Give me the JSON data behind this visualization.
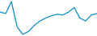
{
  "values": [
    48,
    46,
    62,
    28,
    18,
    22,
    30,
    36,
    40,
    43,
    45,
    44,
    48,
    54,
    40,
    36,
    44,
    46
  ],
  "line_color": "#2196c4",
  "line_width": 1.0,
  "background_color": "#ffffff"
}
